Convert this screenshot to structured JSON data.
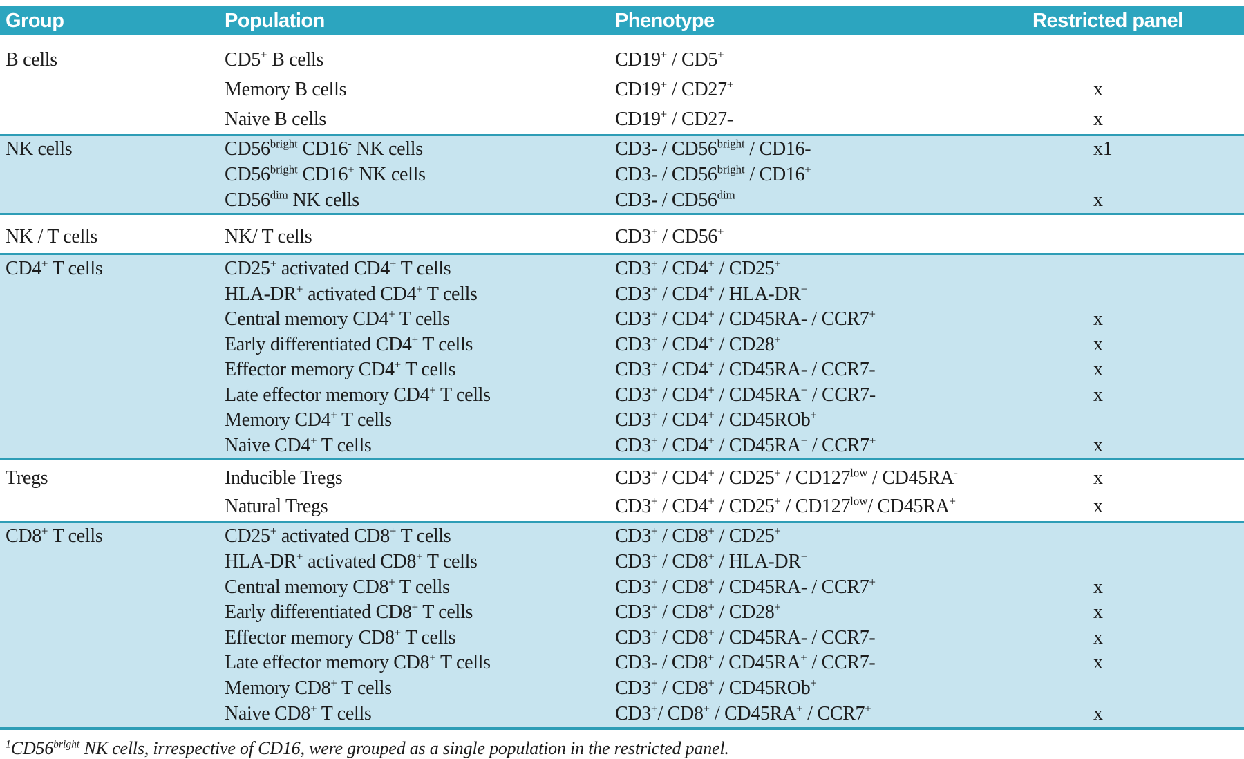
{
  "header": {
    "columns": [
      "Group",
      "Population",
      "Phenotype",
      "Restricted panel"
    ]
  },
  "groups": [
    {
      "name": "B cells",
      "rows": [
        {
          "population": "CD5^{+} B cells",
          "phenotype": "CD19^{+} / CD5^{+}",
          "restricted": ""
        },
        {
          "population": "Memory B cells",
          "phenotype": "CD19^{+} / CD27^{+}",
          "restricted": "x"
        },
        {
          "population": "Naive B cells",
          "phenotype": "CD19^{+} / CD27-",
          "restricted": "x"
        }
      ]
    },
    {
      "name": "NK cells",
      "rows": [
        {
          "population": "CD56^{bright} CD16^{-} NK cells",
          "phenotype": "CD3- / CD56^{bright} / CD16-",
          "restricted": "x1"
        },
        {
          "population": "CD56^{bright} CD16^{+} NK cells",
          "phenotype": "CD3- / CD56^{bright} / CD16^{+}",
          "restricted": ""
        },
        {
          "population": "CD56^{dim} NK cells",
          "phenotype": "CD3- / CD56^{dim}",
          "restricted": "x"
        }
      ]
    },
    {
      "name": "NK / T cells",
      "rows": [
        {
          "population": "NK/ T cells",
          "phenotype": "CD3^{+} / CD56^{+}",
          "restricted": ""
        }
      ]
    },
    {
      "name": "CD4^{+} T cells",
      "rows": [
        {
          "population": "CD25^{+} activated CD4^{+} T cells",
          "phenotype": "CD3^{+} / CD4^{+} / CD25^{+}",
          "restricted": ""
        },
        {
          "population": "HLA-DR^{+} activated CD4^{+} T cells",
          "phenotype": "CD3^{+} / CD4^{+} / HLA-DR^{+}",
          "restricted": ""
        },
        {
          "population": "Central memory CD4^{+} T cells",
          "phenotype": "CD3^{+} / CD4^{+} / CD45RA- / CCR7^{+}",
          "restricted": "x"
        },
        {
          "population": "Early differentiated CD4^{+} T cells",
          "phenotype": "CD3^{+} / CD4^{+} / CD28^{+}",
          "restricted": "x"
        },
        {
          "population": "Effector memory CD4^{+} T cells",
          "phenotype": "CD3^{+} / CD4^{+} / CD45RA- / CCR7-",
          "restricted": "x"
        },
        {
          "population": "Late effector memory CD4^{+} T cells",
          "phenotype": "CD3^{+} / CD4^{+} / CD45RA^{+} / CCR7-",
          "restricted": "x"
        },
        {
          "population": "Memory CD4^{+} T cells",
          "phenotype": "CD3^{+} / CD4^{+} / CD45ROb^{+}",
          "restricted": ""
        },
        {
          "population": "Naive CD4^{+} T cells",
          "phenotype": "CD3^{+} / CD4^{+} / CD45RA^{+} / CCR7^{+}",
          "restricted": "x"
        }
      ]
    },
    {
      "name": "Tregs",
      "rows": [
        {
          "population": "Inducible Tregs",
          "phenotype": "CD3^{+} / CD4^{+} / CD25^{+} / CD127^{low} / CD45RA^{-}",
          "restricted": "x"
        },
        {
          "population": "Natural Tregs",
          "phenotype": "CD3^{+} / CD4^{+} / CD25^{+} / CD127^{low}/ CD45RA^{+}",
          "restricted": "x"
        }
      ]
    },
    {
      "name": "CD8^{+} T cells",
      "rows": [
        {
          "population": "CD25^{+} activated CD8^{+} T cells",
          "phenotype": "CD3^{+} / CD8^{+} / CD25^{+}",
          "restricted": ""
        },
        {
          "population": "HLA-DR^{+} activated CD8^{+} T cells",
          "phenotype": "CD3^{+} / CD8^{+} / HLA-DR^{+}",
          "restricted": ""
        },
        {
          "population": "Central memory CD8^{+} T cells",
          "phenotype": "CD3^{+} / CD8^{+} / CD45RA- / CCR7^{+}",
          "restricted": "x"
        },
        {
          "population": "Early differentiated CD8^{+} T cells",
          "phenotype": "CD3^{+} / CD8^{+} / CD28^{+}",
          "restricted": "x"
        },
        {
          "population": "Effector memory CD8^{+} T cells",
          "phenotype": "CD3^{+} / CD8^{+} / CD45RA- / CCR7-",
          "restricted": "x"
        },
        {
          "population": "Late effector memory CD8^{+} T cells",
          "phenotype": "CD3- / CD8^{+} / CD45RA^{+} / CCR7-",
          "restricted": "x"
        },
        {
          "population": "Memory CD8^{+} T cells",
          "phenotype": "CD3^{+} / CD8^{+} / CD45ROb^{+}",
          "restricted": ""
        },
        {
          "population": "Naive CD8^{+} T cells",
          "phenotype": "CD3^{+}/ CD8^{+} / CD45RA^{+} / CCR7^{+}",
          "restricted": "x"
        }
      ]
    }
  ],
  "footnote": "^{1}CD56^{bright} NK cells, irrespective of CD16, were grouped as a single population in the restricted panel.",
  "colors": {
    "header_bg": "#2ca5bf",
    "header_text": "#ffffff",
    "band_bg": "#c7e4ef",
    "line": "#2e9db6",
    "text": "#1c1c1c"
  }
}
